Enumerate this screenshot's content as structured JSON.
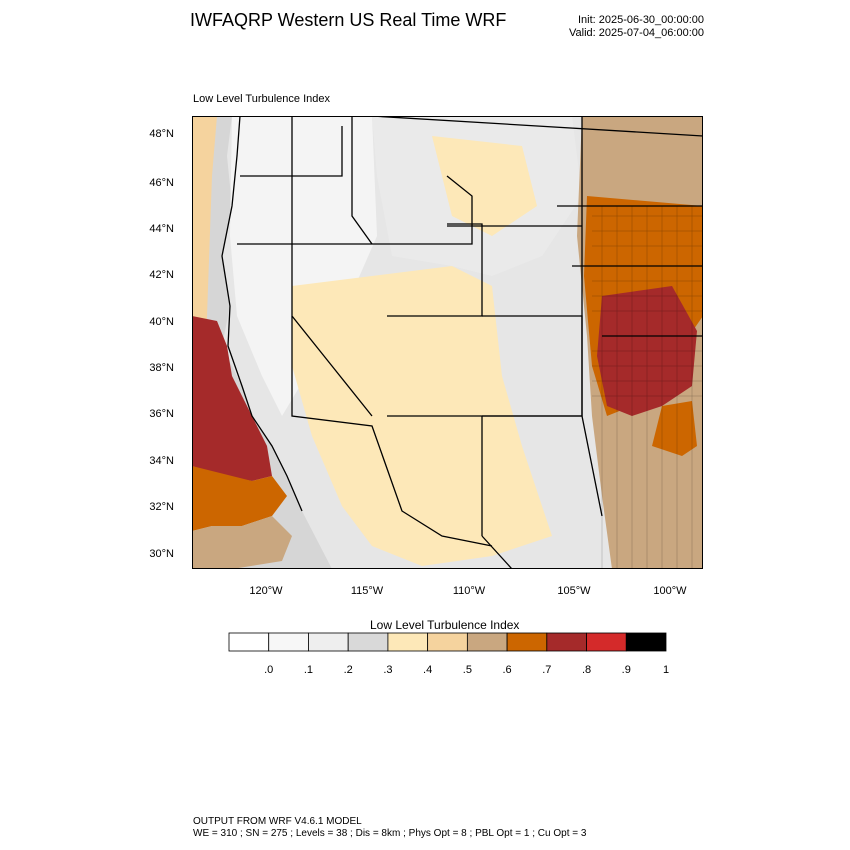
{
  "header": {
    "title": "IWFAQRP Western US Real Time WRF",
    "init": "Init: 2025-06-30_00:00:00",
    "valid": "Valid: 2025-07-04_06:00:00"
  },
  "plot": {
    "label": "Low Level Turbulence Index",
    "lat_labels": [
      "48°N",
      "46°N",
      "44°N",
      "42°N",
      "40°N",
      "38°N",
      "36°N",
      "34°N",
      "32°N",
      "30°N"
    ],
    "lon_labels": [
      "120°W",
      "115°W",
      "110°W",
      "105°W",
      "100°W"
    ]
  },
  "colorbar": {
    "title": "Low Level Turbulence Index",
    "ticks": [
      ".0",
      ".1",
      ".2",
      ".3",
      ".4",
      ".5",
      ".6",
      ".7",
      ".8",
      ".9",
      "1"
    ],
    "colors": [
      "#ffffff",
      "#f7f7f7",
      "#eeeeee",
      "#d9d9d9",
      "#fde8b8",
      "#f5d39e",
      "#c9a780",
      "#cc6600",
      "#a52a2a",
      "#d42a2a",
      "#000000"
    ]
  },
  "footer": {
    "line1": "OUTPUT FROM WRF V4.6.1 MODEL",
    "line2": "WE = 310 ; SN = 275 ; Levels = 38 ; Dis = 8km ; Phys Opt = 8 ; PBL Opt = 1 ; Cu Opt = 3"
  }
}
